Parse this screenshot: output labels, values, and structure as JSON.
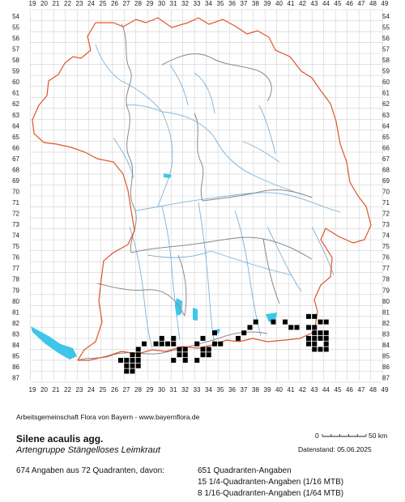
{
  "map": {
    "top_labels": [
      "19",
      "20",
      "21",
      "22",
      "23",
      "24",
      "25",
      "26",
      "27",
      "28",
      "29",
      "30",
      "31",
      "32",
      "33",
      "34",
      "35",
      "36",
      "37",
      "38",
      "39",
      "40",
      "41",
      "42",
      "43",
      "44",
      "45",
      "46",
      "47",
      "48",
      "49"
    ],
    "side_labels": [
      "54",
      "55",
      "56",
      "57",
      "58",
      "59",
      "60",
      "61",
      "62",
      "63",
      "64",
      "65",
      "66",
      "67",
      "68",
      "69",
      "70",
      "71",
      "72",
      "73",
      "74",
      "75",
      "76",
      "77",
      "78",
      "79",
      "80",
      "81",
      "82",
      "83",
      "84",
      "85",
      "86",
      "87"
    ],
    "occurrences": [
      [
        26.5,
        85.5
      ],
      [
        27,
        85.5
      ],
      [
        27.5,
        85.5
      ],
      [
        28,
        85.5
      ],
      [
        27,
        86
      ],
      [
        27.5,
        86
      ],
      [
        28,
        86
      ],
      [
        27,
        86.5
      ],
      [
        27.5,
        86.5
      ],
      [
        27.5,
        85
      ],
      [
        28,
        85
      ],
      [
        28,
        84.5
      ],
      [
        28.5,
        84
      ],
      [
        29.5,
        84
      ],
      [
        30,
        84
      ],
      [
        30.5,
        84
      ],
      [
        31,
        84
      ],
      [
        30,
        83.5
      ],
      [
        31,
        83.5
      ],
      [
        31.5,
        84.5
      ],
      [
        32,
        84.5
      ],
      [
        32,
        85
      ],
      [
        31.5,
        85
      ],
      [
        31,
        85.5
      ],
      [
        32,
        85.5
      ],
      [
        33,
        84
      ],
      [
        33.5,
        83.5
      ],
      [
        33.5,
        84.5
      ],
      [
        34,
        84.5
      ],
      [
        33.5,
        85
      ],
      [
        33,
        85.5
      ],
      [
        34,
        85
      ],
      [
        34.5,
        84
      ],
      [
        35,
        84
      ],
      [
        34.5,
        83
      ],
      [
        36.5,
        83.5
      ],
      [
        37,
        83
      ],
      [
        37.5,
        82.5
      ],
      [
        38,
        82
      ],
      [
        39.5,
        82
      ],
      [
        40.5,
        82
      ],
      [
        41,
        82.5
      ],
      [
        41.5,
        82.5
      ],
      [
        42.5,
        82.5
      ],
      [
        42.5,
        81.5
      ],
      [
        43,
        81.5
      ],
      [
        43.5,
        82
      ],
      [
        44,
        82
      ],
      [
        43,
        82.5
      ],
      [
        43.5,
        83
      ],
      [
        44,
        83
      ],
      [
        43,
        83
      ],
      [
        42.5,
        83.5
      ],
      [
        43,
        83.5
      ],
      [
        43.5,
        83.5
      ],
      [
        44,
        83.5
      ],
      [
        42.5,
        84
      ],
      [
        43,
        84
      ],
      [
        44,
        84
      ],
      [
        43,
        84.5
      ],
      [
        43.5,
        84.5
      ],
      [
        44,
        84.5
      ]
    ],
    "colors": {
      "grid": "#d0d0d0",
      "state_border": "#e0542a",
      "district_border": "#8a8a8a",
      "rivers": "#7db3d8",
      "lakes": "#3ec6ea",
      "dots": "#000000"
    },
    "credit": "Arbeitsgemeinschaft Flora von Bayern - www.bayernflora.de",
    "scale_zero": "0",
    "scale_end": "50 km",
    "date": "Datenstand: 05.06.2025"
  },
  "species": {
    "name": "Silene acaulis agg.",
    "common": "Artengruppe Stängelloses Leimkraut"
  },
  "stats": {
    "summary": "674 Angaben aus 72 Quadranten, davon:",
    "line1": "651 Quadranten-Angaben",
    "line2": "15 1/4-Quadranten-Angaben (1/16 MTB)",
    "line3": "8 1/16-Quadranten-Angaben (1/64 MTB)"
  }
}
